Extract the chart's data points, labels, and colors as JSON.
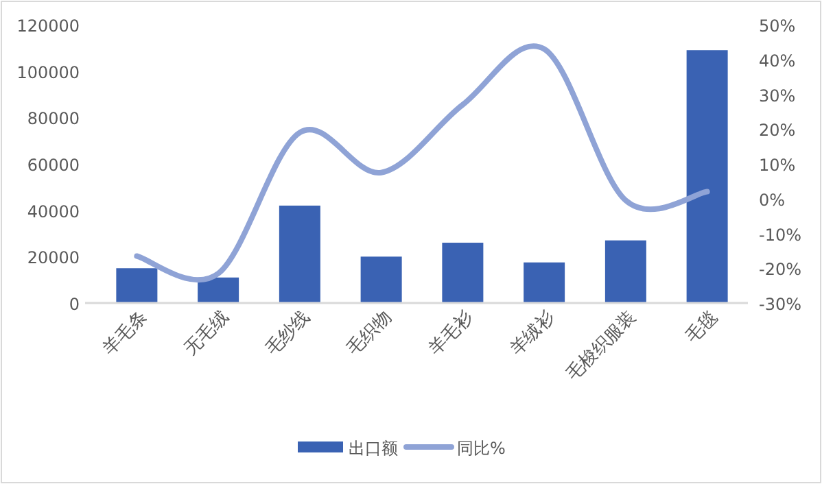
{
  "chart_data": {
    "type": "bar",
    "categories": [
      "羊毛条",
      "无毛绒",
      "毛纱线",
      "毛织物",
      "羊毛衫",
      "羊绒衫",
      "毛梭织服装",
      "毛毯"
    ],
    "series": [
      {
        "name": "出口额",
        "color": "#3a62b3",
        "values": [
          15000,
          11000,
          42000,
          20000,
          26000,
          17500,
          27000,
          109000
        ]
      },
      {
        "name": "同比%",
        "type": "line",
        "axis": "y2",
        "color": "#8fa3d6",
        "values": [
          -16.5,
          -21.5,
          19,
          7.5,
          27,
          43,
          -0.5,
          2
        ]
      }
    ],
    "ylim": [
      0,
      120000
    ],
    "yticks": [
      0,
      20000,
      40000,
      60000,
      80000,
      100000,
      120000
    ],
    "y2lim": [
      -30,
      50
    ],
    "y2ticks": [
      {
        "value": -30,
        "label": "-30%"
      },
      {
        "value": -20,
        "label": "-20%"
      },
      {
        "value": -10,
        "label": "-10%"
      },
      {
        "value": 0,
        "label": "0%"
      },
      {
        "value": 10,
        "label": "10%"
      },
      {
        "value": 20,
        "label": "20%"
      },
      {
        "value": 30,
        "label": "30%"
      },
      {
        "value": 40,
        "label": "40%"
      },
      {
        "value": 50,
        "label": "50%"
      }
    ],
    "legend": "bottom",
    "marker": "none"
  }
}
